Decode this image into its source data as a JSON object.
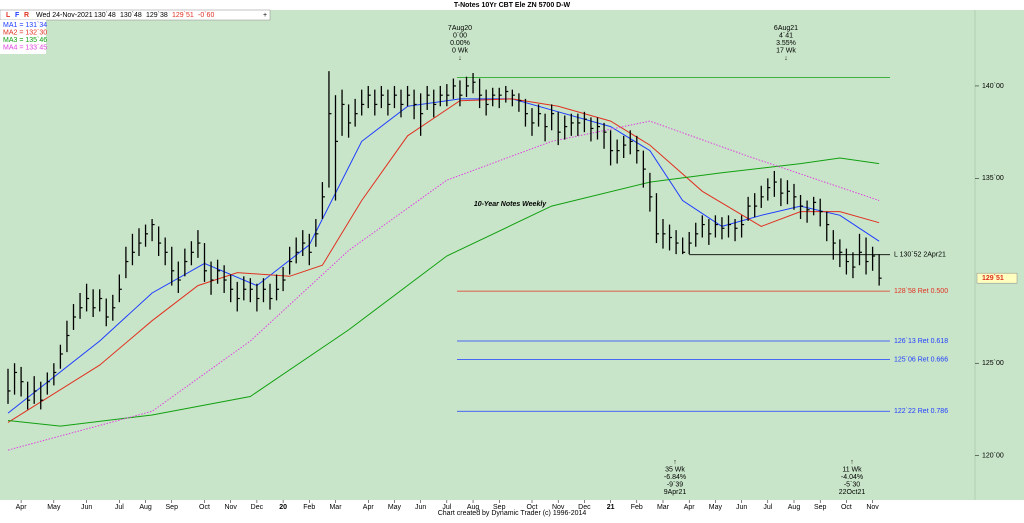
{
  "header": {
    "title": "T-Notes 10Yr CBT Ele ZN 5700 D-W",
    "flags": [
      "L",
      "F",
      "R"
    ],
    "date": "Wed 24-Nov-2021",
    "quote": [
      "130`48",
      "130`48",
      "129`38",
      "129`51",
      "-0`60"
    ]
  },
  "footer": "Chart created by Dynamic Trader  (c) 1996-2014",
  "chart_data": {
    "type": "ohlc",
    "label": "10-Year Notes Weekly",
    "ylim": [
      117.6,
      144
    ],
    "yticks": [
      {
        "value": 120,
        "label": "120`00"
      },
      {
        "value": 125,
        "label": "125`00"
      },
      {
        "value": 135,
        "label": "135`00"
      },
      {
        "value": 140,
        "label": "140`00"
      }
    ],
    "categories": [
      null,
      null,
      "Apr",
      null,
      null,
      null,
      null,
      "May",
      null,
      null,
      null,
      null,
      "Jun",
      null,
      null,
      null,
      null,
      "Jul",
      null,
      null,
      null,
      "Aug",
      null,
      null,
      null,
      "Sep",
      null,
      null,
      null,
      null,
      "Oct",
      null,
      null,
      null,
      "Nov",
      null,
      null,
      null,
      "Dec",
      null,
      null,
      null,
      "20",
      null,
      null,
      null,
      "Feb",
      null,
      null,
      null,
      "Mar",
      null,
      null,
      null,
      null,
      "Apr",
      null,
      null,
      null,
      "May",
      null,
      null,
      null,
      "Jun",
      null,
      null,
      null,
      "Jul",
      null,
      null,
      null,
      "Aug",
      null,
      null,
      null,
      "Sep",
      null,
      null,
      null,
      null,
      "Oct",
      null,
      null,
      null,
      "Nov",
      null,
      null,
      null,
      "Dec",
      null,
      null,
      null,
      "21",
      null,
      null,
      null,
      "Feb",
      null,
      null,
      null,
      "Mar",
      null,
      null,
      null,
      "Apr",
      null,
      null,
      null,
      "May",
      null,
      null,
      null,
      "Jun",
      null,
      null,
      null,
      "Jul",
      null,
      null,
      null,
      "Aug",
      null,
      null,
      null,
      "Sep",
      null,
      null,
      null,
      "Oct",
      null,
      null,
      null,
      "Nov",
      null
    ],
    "bars": {
      "high": [
        124.7,
        125,
        124.8,
        124,
        124.3,
        124,
        124.5,
        125,
        126,
        127.3,
        128.2,
        128.8,
        129.3,
        129,
        129,
        128.5,
        128.7,
        129.8,
        131.3,
        132,
        132.3,
        132.5,
        132.8,
        132.4,
        131.8,
        131.3,
        130.5,
        131.2,
        131.6,
        132.2,
        131.5,
        130.5,
        130.6,
        130.3,
        129.8,
        129.4,
        129.7,
        129.6,
        129.3,
        129.6,
        129.3,
        129.8,
        130.2,
        131.3,
        131.8,
        132.2,
        132,
        132.8,
        134.8,
        140.8,
        139.5,
        139.8,
        139,
        139.3,
        139.8,
        140,
        139.8,
        140,
        139.8,
        140,
        139.8,
        140,
        139.8,
        139.6,
        140,
        139.8,
        140,
        140.1,
        140.4,
        140.3,
        140.5,
        140.7,
        140.4,
        139.8,
        139.9,
        139.9,
        140,
        139.8,
        139.6,
        139.3,
        138.8,
        139,
        138.5,
        139,
        138.6,
        138.4,
        138.5,
        138.5,
        138.6,
        138.3,
        138.3,
        138,
        137.6,
        137.1,
        137.3,
        137.6,
        137.3,
        136.5,
        135.3,
        134.2,
        132.8,
        132.5,
        132.2,
        131.8,
        132.1,
        132.6,
        133,
        132.8,
        133,
        132.9,
        133,
        132.8,
        133,
        134,
        134.2,
        134.6,
        135,
        135.4,
        135,
        134.9,
        134.7,
        134.1,
        133.8,
        134,
        133.9,
        133.2,
        132.2,
        131.7,
        131.2,
        131,
        132,
        131.8,
        131.3,
        130.9
      ],
      "low": [
        122.8,
        123.3,
        123.2,
        122.5,
        122.8,
        122.5,
        123.3,
        123.8,
        124.7,
        125.6,
        126.8,
        127.4,
        127.8,
        127.5,
        127.8,
        127,
        127.3,
        128.3,
        129.6,
        130.3,
        130.8,
        131.3,
        131.6,
        130.8,
        130.3,
        129.2,
        128.8,
        129.7,
        130.3,
        130.7,
        129.4,
        128.7,
        129.3,
        128.8,
        128.3,
        127.8,
        128.4,
        128.3,
        127.8,
        128.3,
        127.9,
        128.4,
        128.9,
        129.8,
        130.4,
        130.8,
        130.3,
        131.3,
        132.8,
        134.5,
        133.8,
        137.3,
        137.2,
        137.8,
        138.4,
        138.8,
        138.4,
        138.8,
        138.4,
        138.8,
        138.3,
        138.9,
        138.2,
        137.3,
        138.7,
        138.3,
        138.9,
        138.9,
        139.3,
        138.9,
        139.4,
        139.6,
        138.8,
        138.4,
        138.9,
        138.8,
        139.1,
        138.9,
        138.6,
        137.8,
        137.3,
        137.8,
        137,
        137.6,
        136.8,
        137.1,
        137.3,
        137.3,
        137.5,
        137,
        137.1,
        136.6,
        135.7,
        135.8,
        136.1,
        136.3,
        135.8,
        134.5,
        133.2,
        131.5,
        131.2,
        131.1,
        130.9,
        130.9,
        130.9,
        131.3,
        131.8,
        131.4,
        131.8,
        131.7,
        131.8,
        131.6,
        131.8,
        132.7,
        132.9,
        133.4,
        133.8,
        134,
        133.5,
        133.6,
        133.3,
        132.8,
        132.6,
        133,
        132.4,
        131.6,
        130.6,
        130.2,
        129.8,
        129.6,
        130.3,
        129.8,
        130,
        129.2
      ],
      "close": [
        123.5,
        124.5,
        124,
        123,
        123.5,
        123,
        124,
        124.5,
        125.5,
        126.5,
        127.5,
        128,
        128.5,
        128,
        128.5,
        127.5,
        128,
        129,
        130.5,
        131,
        131.5,
        132,
        132.5,
        131.5,
        131,
        130,
        129.5,
        130.5,
        131,
        131.5,
        130,
        129.5,
        130,
        129.5,
        129,
        128.5,
        129,
        129,
        128.5,
        129,
        128.5,
        129,
        129.5,
        130.5,
        131,
        131.5,
        131,
        132,
        134,
        138.5,
        137,
        139,
        138,
        138.5,
        139,
        139.5,
        139,
        139.5,
        139,
        139.5,
        139,
        139.5,
        139,
        138.5,
        139.5,
        139,
        139.5,
        139.5,
        140,
        139.5,
        140,
        140.2,
        139.5,
        139,
        139.5,
        139.5,
        139.7,
        139.5,
        139.2,
        138.5,
        138,
        138.5,
        137.8,
        138.5,
        137.5,
        137.8,
        138,
        138,
        138.2,
        137.7,
        137.8,
        137.5,
        136.5,
        136.5,
        136.8,
        137,
        136.5,
        135.5,
        134,
        132,
        132,
        131.8,
        131.5,
        131,
        131.5,
        132,
        132.5,
        132,
        132.5,
        132.3,
        132.5,
        132.3,
        132.5,
        133.5,
        133.5,
        134,
        134.5,
        134.8,
        134.2,
        134.3,
        134,
        133.5,
        133.3,
        133.7,
        133.2,
        132.5,
        131.5,
        131,
        130.5,
        130.2,
        131,
        130.5,
        130.8,
        129.6
      ]
    },
    "series": [
      {
        "name": "MA1 = 131`34",
        "color": "#1e3cff",
        "x": [
          0,
          14,
          22,
          30,
          38,
          46,
          54,
          61,
          69,
          77,
          84,
          92,
          98,
          103,
          109,
          115,
          121,
          127,
          133
        ],
        "values": [
          122.3,
          126.2,
          128.8,
          130.4,
          129.2,
          131.4,
          137,
          138.9,
          139.3,
          139.3,
          138.6,
          137.8,
          136.5,
          133.8,
          132.4,
          133,
          133.5,
          133,
          131.6
        ]
      },
      {
        "name": "MA2 = 132`30",
        "color": "#e03020",
        "x": [
          0,
          14,
          22,
          29,
          35,
          43,
          48,
          54,
          61,
          69,
          77,
          84,
          92,
          98,
          106,
          115,
          121,
          127,
          133
        ],
        "values": [
          121.8,
          124.9,
          127.3,
          129.2,
          129.9,
          129.7,
          130.3,
          133.8,
          137.3,
          139.2,
          139.3,
          138.9,
          138.1,
          136.8,
          134.3,
          132.4,
          133.2,
          133.2,
          132.6
        ]
      },
      {
        "name": "MA3 = 135`46",
        "color": "#10a010",
        "x": [
          0,
          8,
          22,
          37,
          52,
          67,
          83,
          98,
          109,
          121,
          127,
          133
        ],
        "values": [
          121.9,
          121.6,
          122.2,
          123.2,
          126.8,
          130.8,
          133.5,
          134.8,
          135.3,
          135.8,
          136.1,
          135.8
        ]
      },
      {
        "name": "MA4 = 133`45",
        "color": "#e040e0",
        "dashed": true,
        "x": [
          0,
          22,
          37,
          52,
          67,
          83,
          98,
          113,
          133
        ],
        "values": [
          120.3,
          122.4,
          126.2,
          131.1,
          134.9,
          137,
          138.1,
          136.2,
          133.8
        ]
      }
    ],
    "levels": [
      {
        "value": 140.45,
        "color": "#10a010"
      },
      {
        "value": 130.87,
        "color": "#000000",
        "label": "L 130`52 2Apr21"
      },
      {
        "value": 128.9,
        "color": "#e03020",
        "label": "128`58 Ret 0.500"
      },
      {
        "value": 126.2,
        "color": "#1e3cff",
        "label": "126`13 Ret 0.618"
      },
      {
        "value": 125.2,
        "color": "#1e3cff",
        "label": "125`06 Ret 0.666"
      },
      {
        "value": 122.4,
        "color": "#1e3cff",
        "label": "122`22 Ret 0.786"
      }
    ],
    "last_price": {
      "value": 129.6,
      "label": "129`51"
    },
    "annotations": [
      {
        "lines": [
          "7Aug20",
          "0`00",
          "0.00%",
          "0 Wk",
          "↓"
        ]
      },
      {
        "lines": [
          "6Aug21",
          "4`41",
          "3.55%",
          "17 Wk",
          "↓"
        ]
      },
      {
        "lines": [
          "↑",
          "35 Wk",
          "-6.84%",
          "-9`39",
          "9Apr21"
        ]
      },
      {
        "lines": [
          "↑",
          "11 Wk",
          "-4.04%",
          "-5`30",
          "22Oct21"
        ]
      }
    ]
  }
}
